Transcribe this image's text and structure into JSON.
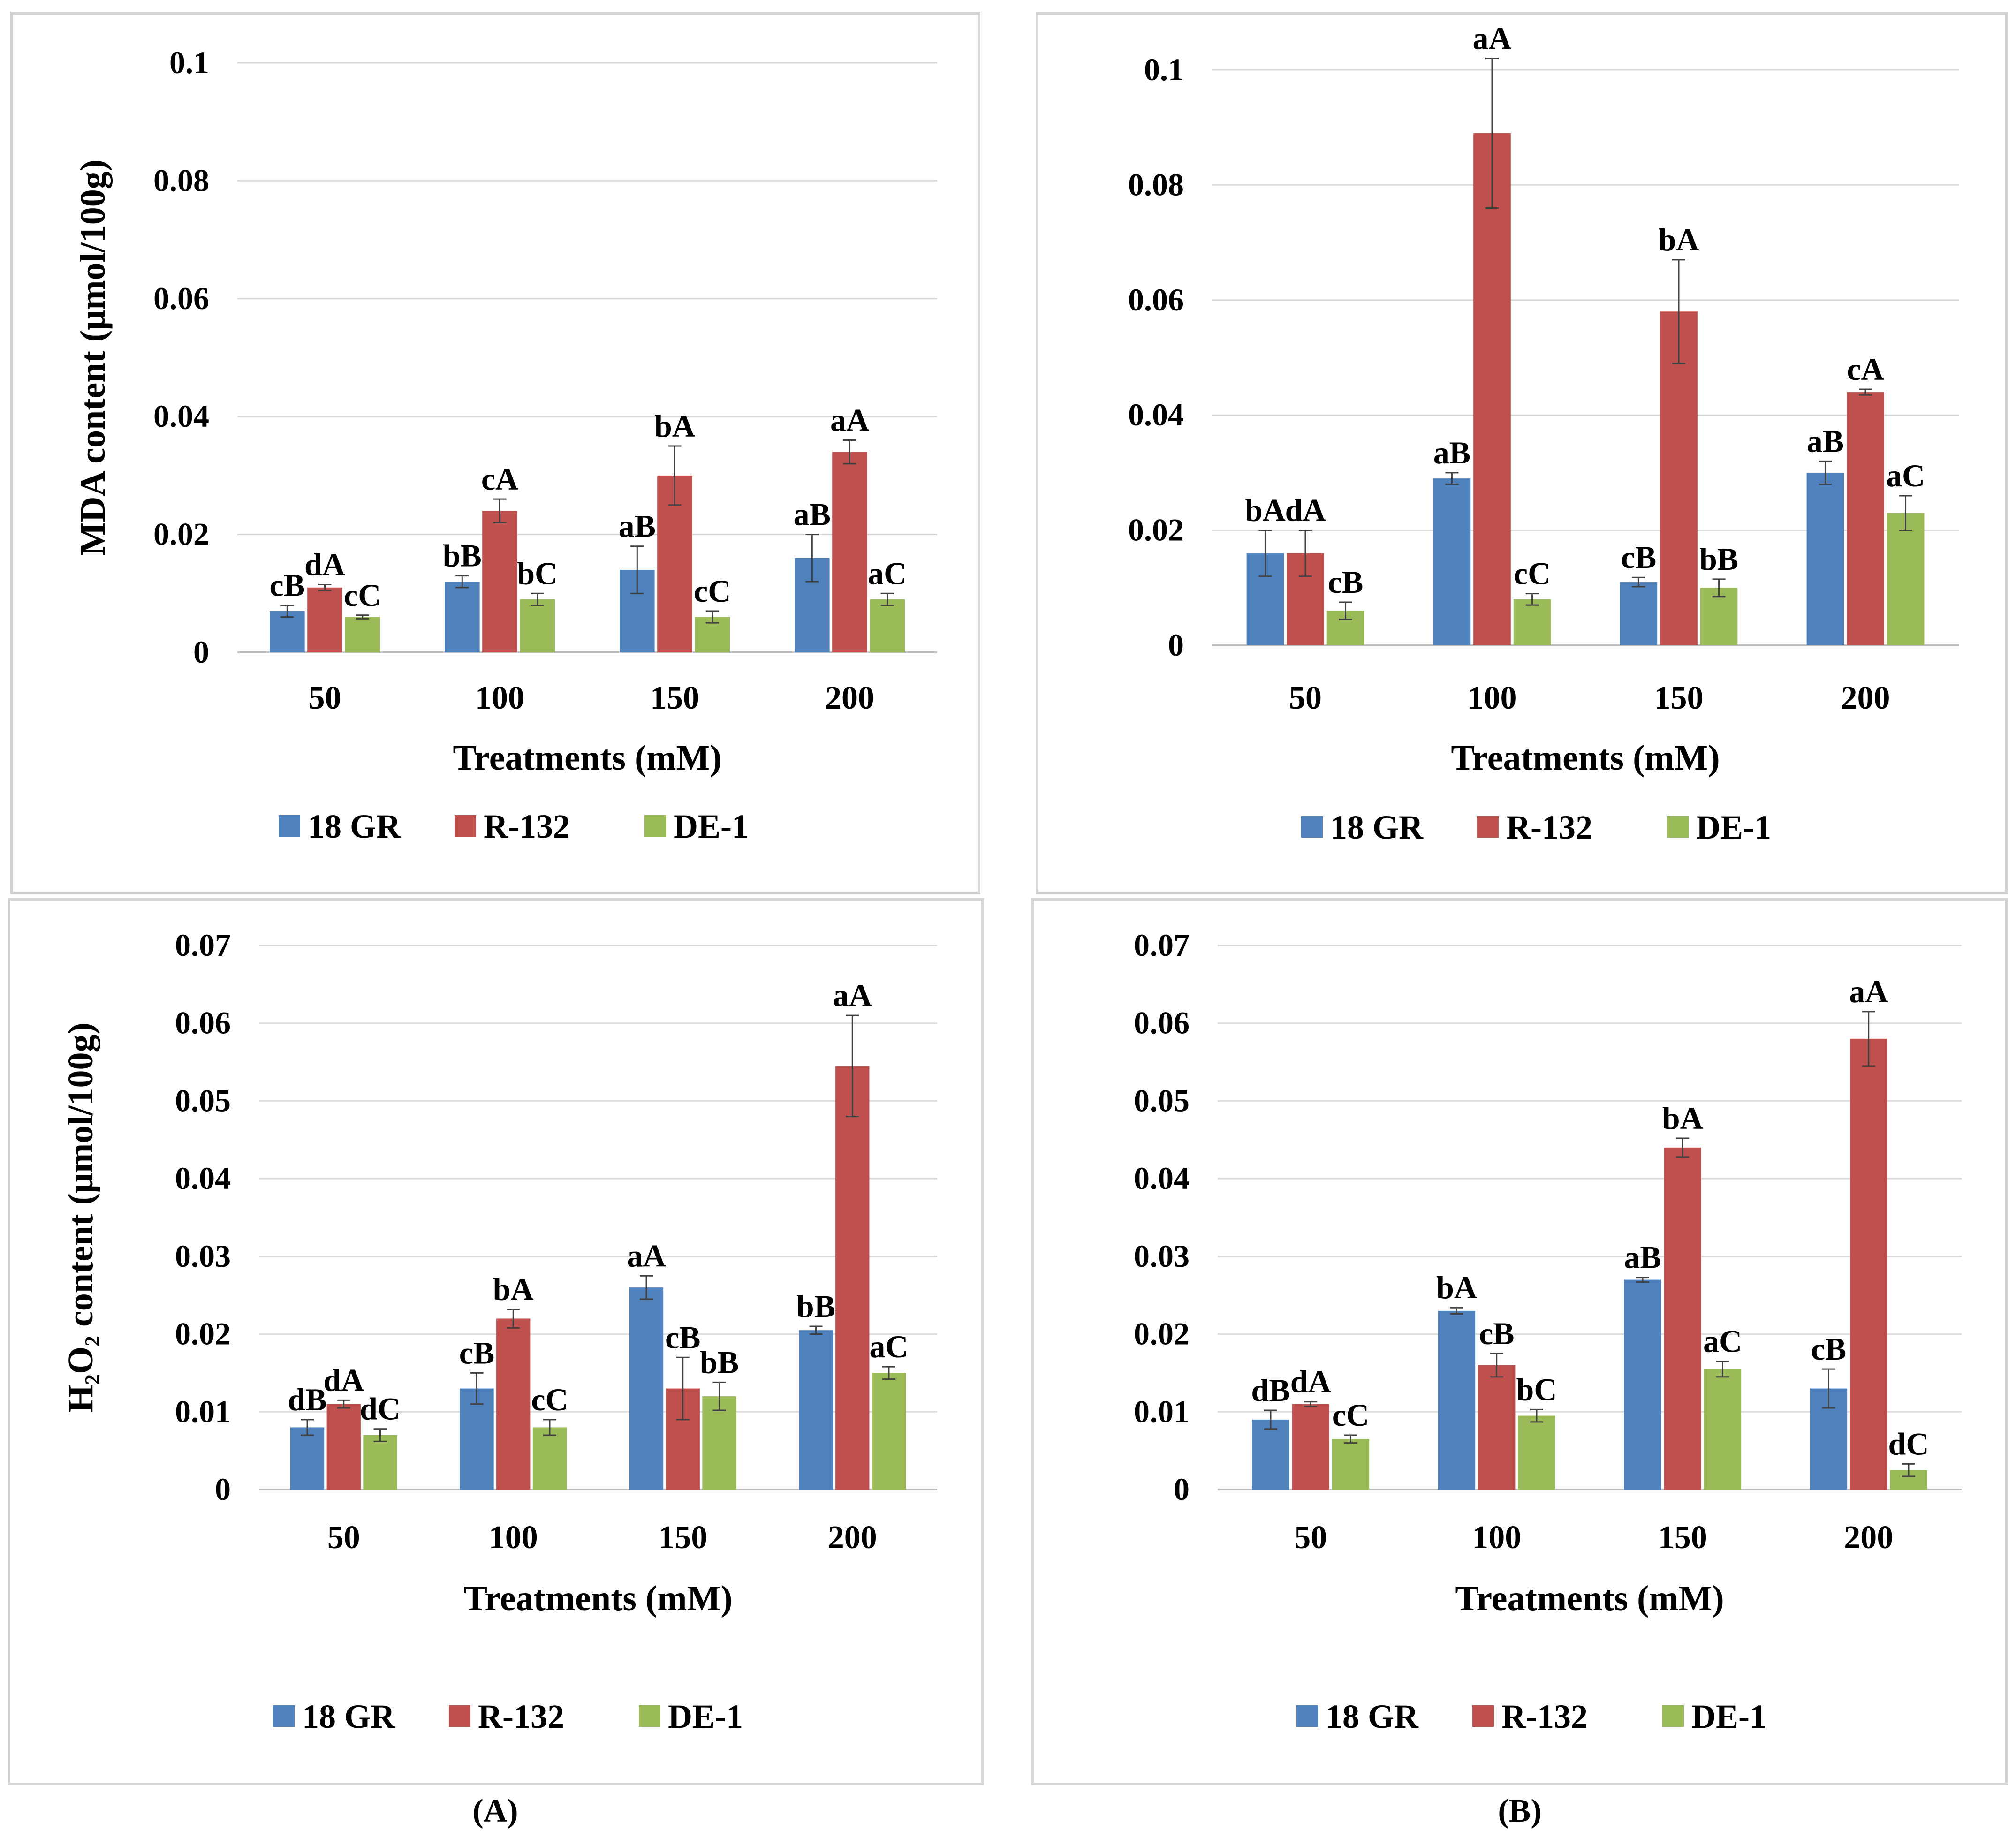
{
  "captions": {
    "a": "(A)",
    "b": "(B)"
  },
  "chart_data": [
    {
      "id": "tl",
      "type": "bar",
      "title": "",
      "xlabel": "Treatments (mM)",
      "ylabel": "MDA content (μmol/100g)",
      "ylim": [
        0,
        0.1
      ],
      "yticks": [
        "0",
        "0.02",
        "0.04",
        "0.06",
        "0.08",
        "0.1"
      ],
      "yticks_v": [
        0,
        0.02,
        0.04,
        0.06,
        0.08,
        0.1
      ],
      "categories": [
        "50",
        "100",
        "150",
        "200"
      ],
      "legend": [
        "18 GR",
        "R-132",
        "DE-1"
      ],
      "series": [
        {
          "name": "18 GR",
          "values": [
            0.007,
            0.012,
            0.014,
            0.016
          ],
          "errors": [
            0.001,
            0.001,
            0.004,
            0.004
          ],
          "labels": [
            "cB",
            "bB",
            "aB",
            "aB"
          ]
        },
        {
          "name": "R-132",
          "values": [
            0.011,
            0.024,
            0.03,
            0.034
          ],
          "errors": [
            0.0005,
            0.002,
            0.005,
            0.002
          ],
          "labels": [
            "dA",
            "cA",
            "bA",
            "aA"
          ]
        },
        {
          "name": "DE-1",
          "values": [
            0.006,
            0.009,
            0.006,
            0.009
          ],
          "errors": [
            0.0003,
            0.001,
            0.001,
            0.001
          ],
          "labels": [
            "cC",
            "bC",
            "cC",
            "aC"
          ]
        }
      ]
    },
    {
      "id": "tr",
      "type": "bar",
      "title": "",
      "xlabel": "Treatments (mM)",
      "ylabel": "",
      "ylim": [
        0,
        0.1
      ],
      "yticks": [
        "0",
        "0.02",
        "0.04",
        "0.06",
        "0.08",
        "0.1"
      ],
      "yticks_v": [
        0,
        0.02,
        0.04,
        0.06,
        0.08,
        0.1
      ],
      "categories": [
        "50",
        "100",
        "150",
        "200"
      ],
      "legend": [
        "18 GR",
        "R-132",
        "DE-1"
      ],
      "series": [
        {
          "name": "18 GR",
          "values": [
            0.016,
            0.029,
            0.011,
            0.03
          ],
          "errors": [
            0.004,
            0.001,
            0.0008,
            0.002
          ],
          "labels": [
            "bA",
            "aB",
            "cB",
            "aB"
          ]
        },
        {
          "name": "R-132",
          "values": [
            0.016,
            0.089,
            0.058,
            0.044
          ],
          "errors": [
            0.004,
            0.013,
            0.009,
            0.0005
          ],
          "labels": [
            "dA",
            "aA",
            "bA",
            "cA"
          ]
        },
        {
          "name": "DE-1",
          "values": [
            0.006,
            0.008,
            0.01,
            0.023
          ],
          "errors": [
            0.0015,
            0.001,
            0.0015,
            0.003
          ],
          "labels": [
            "cB",
            "cC",
            "bB",
            "aC"
          ]
        }
      ]
    },
    {
      "id": "bl",
      "type": "bar",
      "title": "",
      "xlabel": "Treatments (mM)",
      "ylabel": "H₂O₂ content (μmol/100g)",
      "ylim": [
        0,
        0.07
      ],
      "yticks": [
        "0",
        "0.01",
        "0.02",
        "0.03",
        "0.04",
        "0.05",
        "0.06",
        "0.07"
      ],
      "yticks_v": [
        0,
        0.01,
        0.02,
        0.03,
        0.04,
        0.05,
        0.06,
        0.07
      ],
      "categories": [
        "50",
        "100",
        "150",
        "200"
      ],
      "legend": [
        "18 GR",
        "R-132",
        "DE-1"
      ],
      "series": [
        {
          "name": "18 GR",
          "values": [
            0.008,
            0.013,
            0.026,
            0.0205
          ],
          "errors": [
            0.001,
            0.002,
            0.0015,
            0.0005
          ],
          "labels": [
            "dB",
            "cB",
            "aA",
            "bB"
          ]
        },
        {
          "name": "R-132",
          "values": [
            0.011,
            0.022,
            0.013,
            0.0545
          ],
          "errors": [
            0.0005,
            0.0012,
            0.004,
            0.0065
          ],
          "labels": [
            "dA",
            "bA",
            "cB",
            "aA"
          ]
        },
        {
          "name": "DE-1",
          "values": [
            0.007,
            0.008,
            0.012,
            0.015
          ],
          "errors": [
            0.0008,
            0.001,
            0.0018,
            0.0008
          ],
          "labels": [
            "dC",
            "cC",
            "bB",
            "aC"
          ]
        }
      ]
    },
    {
      "id": "br",
      "type": "bar",
      "title": "",
      "xlabel": "Treatments (mM)",
      "ylabel": "",
      "ylim": [
        0,
        0.07
      ],
      "yticks": [
        "0",
        "0.01",
        "0.02",
        "0.03",
        "0.04",
        "0.05",
        "0.06",
        "0.07"
      ],
      "yticks_v": [
        0,
        0.01,
        0.02,
        0.03,
        0.04,
        0.05,
        0.06,
        0.07
      ],
      "categories": [
        "50",
        "100",
        "150",
        "200"
      ],
      "legend": [
        "18 GR",
        "R-132",
        "DE-1"
      ],
      "series": [
        {
          "name": "18 GR",
          "values": [
            0.009,
            0.023,
            0.027,
            0.013
          ],
          "errors": [
            0.0012,
            0.0004,
            0.0003,
            0.0025
          ],
          "labels": [
            "dB",
            "bA",
            "aB",
            "cB"
          ]
        },
        {
          "name": "R-132",
          "values": [
            0.011,
            0.016,
            0.044,
            0.058
          ],
          "errors": [
            0.0003,
            0.0015,
            0.0012,
            0.0035
          ],
          "labels": [
            "dA",
            "cB",
            "bA",
            "aA"
          ]
        },
        {
          "name": "DE-1",
          "values": [
            0.0065,
            0.0095,
            0.0155,
            0.0025
          ],
          "errors": [
            0.0005,
            0.0008,
            0.001,
            0.0008
          ],
          "labels": [
            "cC",
            "bC",
            "aC",
            "dC"
          ]
        }
      ]
    }
  ],
  "colors": {
    "series": [
      "#4f81bd",
      "#c0504d",
      "#9bbb59"
    ],
    "grid": "#d9d9d9",
    "axis": "#bfbfbf",
    "border": "#d4d4d4"
  }
}
